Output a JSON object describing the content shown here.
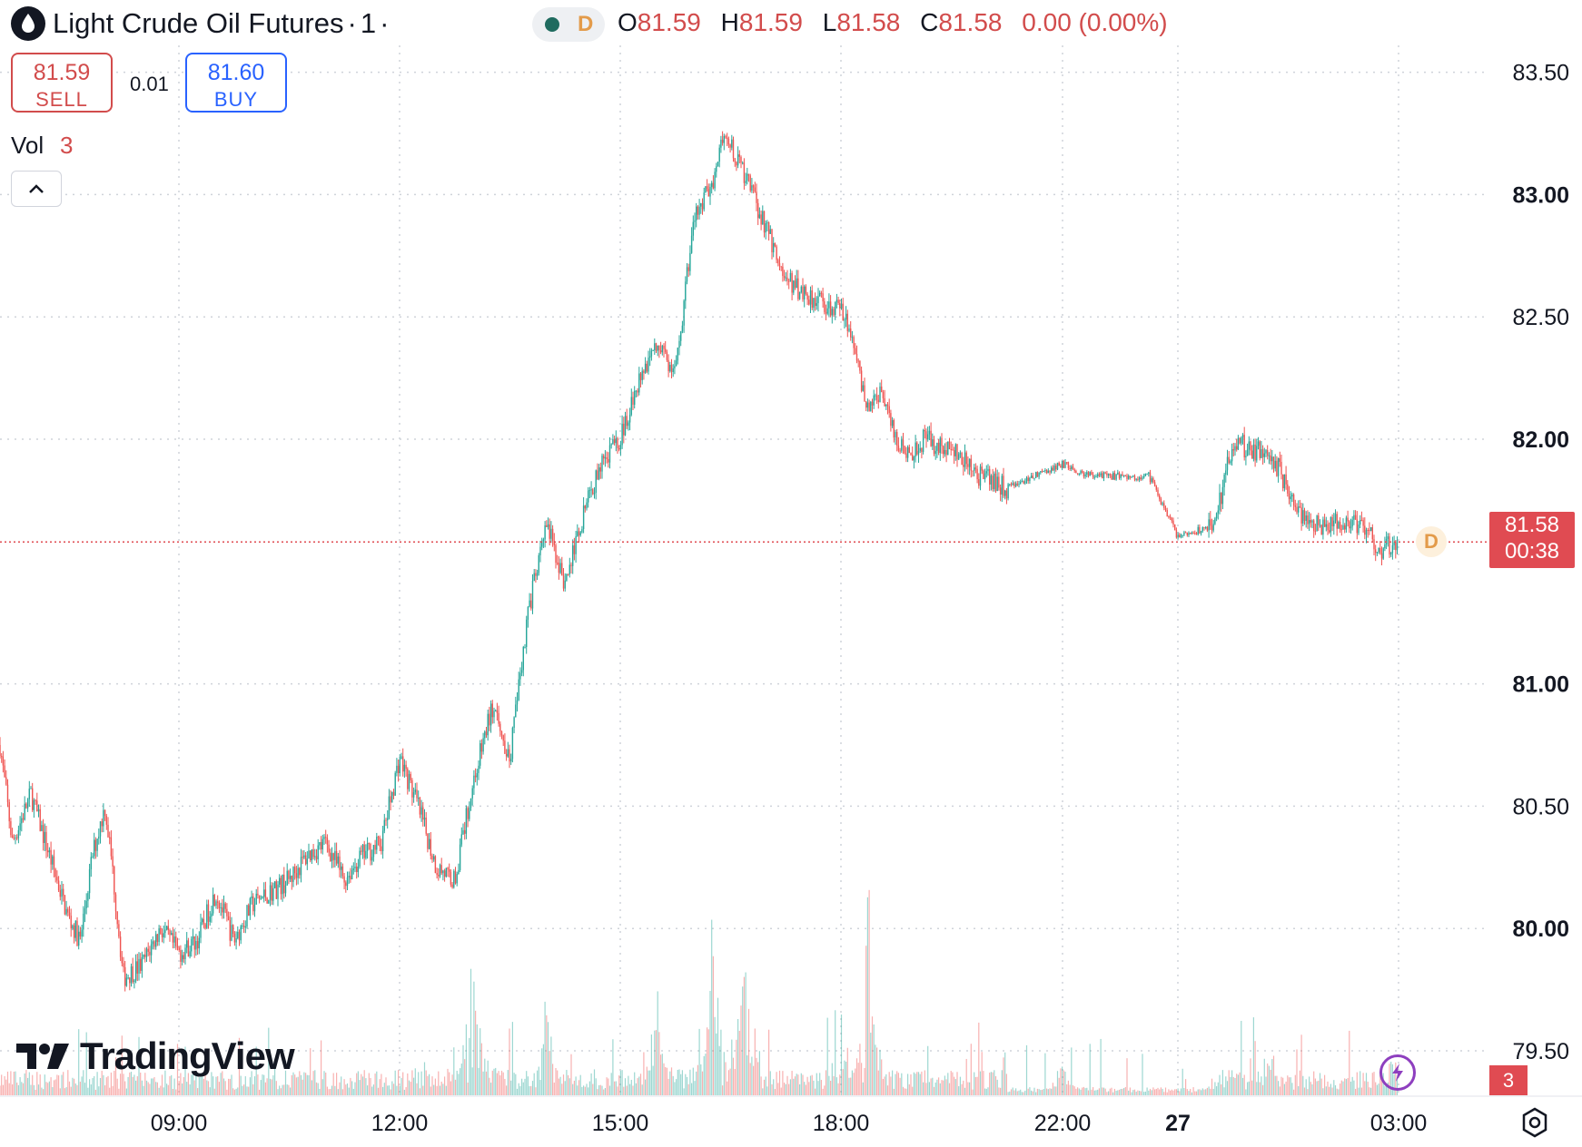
{
  "header": {
    "symbol_title": "Light Crude Oil Futures",
    "separator": "·",
    "interval": "1",
    "trailing_dot": "·",
    "session_badge": "D",
    "ohlc": {
      "o_label": "O",
      "o_value": "81.59",
      "h_label": "H",
      "h_value": "81.59",
      "l_label": "L",
      "l_value": "81.58",
      "c_label": "C",
      "c_value": "81.58",
      "change": "0.00 (0.00%)"
    }
  },
  "trade": {
    "sell_price": "81.59",
    "sell_label": "SELL",
    "spread": "0.01",
    "buy_price": "81.60",
    "buy_label": "BUY"
  },
  "volume_indicator": {
    "label": "Vol",
    "value": "3"
  },
  "price_axis": {
    "ticks": [
      "83.50",
      "83.00",
      "82.50",
      "82.00",
      "81.00",
      "80.50",
      "80.00",
      "79.50"
    ],
    "bold_ticks": [
      "83.00",
      "82.00",
      "81.00",
      "80.00"
    ]
  },
  "time_axis": {
    "ticks": [
      "09:00",
      "12:00",
      "15:00",
      "18:00",
      "22:00",
      "27",
      "03:00"
    ],
    "bold_ticks": [
      "27"
    ]
  },
  "last_price": {
    "price": "81.58",
    "countdown": "00:38",
    "volume_value": "3",
    "badge": "D"
  },
  "branding": {
    "logo_text": "TradingView"
  },
  "colors": {
    "up": "#26a69a",
    "down": "#ef5350",
    "last_price_tag": "#e04b52",
    "buy": "#2962ff",
    "sell": "#d24c4c"
  },
  "icons": {
    "symbol": "oil-drop-icon",
    "collapse": "chevron-up-icon",
    "flash": "lightning-icon",
    "settings": "gear-icon"
  },
  "chart_data": {
    "type": "candlestick",
    "title": "Light Crude Oil Futures · 1",
    "interval_minutes": 1,
    "last_price": 81.58,
    "ylim": [
      79.3,
      83.7
    ],
    "grid": true,
    "price_path": [
      [
        "06:35",
        80.75
      ],
      [
        "06:45",
        80.35
      ],
      [
        "07:00",
        80.55
      ],
      [
        "07:15",
        80.3
      ],
      [
        "07:30",
        80.05
      ],
      [
        "07:40",
        79.95
      ],
      [
        "07:50",
        80.3
      ],
      [
        "08:00",
        80.5
      ],
      [
        "08:05",
        80.3
      ],
      [
        "08:15",
        79.8
      ],
      [
        "08:30",
        79.85
      ],
      [
        "08:45",
        80.0
      ],
      [
        "09:00",
        79.9
      ],
      [
        "09:15",
        79.95
      ],
      [
        "09:30",
        80.15
      ],
      [
        "09:45",
        79.95
      ],
      [
        "10:00",
        80.1
      ],
      [
        "10:30",
        80.2
      ],
      [
        "10:45",
        80.3
      ],
      [
        "11:00",
        80.35
      ],
      [
        "11:15",
        80.2
      ],
      [
        "11:30",
        80.3
      ],
      [
        "11:45",
        80.35
      ],
      [
        "12:00",
        80.7
      ],
      [
        "12:15",
        80.5
      ],
      [
        "12:30",
        80.25
      ],
      [
        "12:45",
        80.2
      ],
      [
        "13:00",
        80.6
      ],
      [
        "13:15",
        80.9
      ],
      [
        "13:30",
        80.7
      ],
      [
        "13:45",
        81.3
      ],
      [
        "14:00",
        81.65
      ],
      [
        "14:15",
        81.4
      ],
      [
        "14:30",
        81.7
      ],
      [
        "14:45",
        81.9
      ],
      [
        "15:00",
        82.0
      ],
      [
        "15:15",
        82.25
      ],
      [
        "15:30",
        82.4
      ],
      [
        "15:45",
        82.25
      ],
      [
        "16:00",
        82.9
      ],
      [
        "16:15",
        83.05
      ],
      [
        "16:25",
        83.25
      ],
      [
        "16:40",
        83.1
      ],
      [
        "17:00",
        82.85
      ],
      [
        "17:15",
        82.65
      ],
      [
        "17:30",
        82.6
      ],
      [
        "17:45",
        82.55
      ],
      [
        "18:00",
        82.55
      ],
      [
        "18:15",
        82.35
      ],
      [
        "18:30",
        82.1
      ],
      [
        "18:45",
        82.2
      ],
      [
        "19:00",
        82.0
      ],
      [
        "19:15",
        81.95
      ],
      [
        "19:30",
        82.0
      ],
      [
        "20:00",
        81.95
      ],
      [
        "20:30",
        81.85
      ],
      [
        "21:00",
        81.8
      ],
      [
        "21:30",
        81.85
      ],
      [
        "22:00",
        81.9
      ],
      [
        "22:30",
        81.85
      ],
      [
        "23:00",
        81.85
      ],
      [
        "23:30",
        81.85
      ],
      [
        "00:00",
        81.6
      ],
      [
        "00:30",
        81.65
      ],
      [
        "00:45",
        82.0
      ],
      [
        "01:00",
        81.95
      ],
      [
        "01:15",
        81.95
      ],
      [
        "01:30",
        81.8
      ],
      [
        "01:45",
        81.65
      ],
      [
        "02:15",
        81.65
      ],
      [
        "02:30",
        81.65
      ],
      [
        "02:45",
        81.55
      ],
      [
        "03:00",
        81.58
      ]
    ],
    "volume_spikes": [
      [
        "13:00",
        9
      ],
      [
        "14:00",
        5
      ],
      [
        "15:30",
        6
      ],
      [
        "16:15",
        11
      ],
      [
        "16:40",
        9
      ],
      [
        "18:00",
        4
      ],
      [
        "18:30",
        11
      ],
      [
        "22:00",
        2
      ],
      [
        "01:15",
        2
      ],
      [
        "03:00",
        3
      ]
    ]
  }
}
